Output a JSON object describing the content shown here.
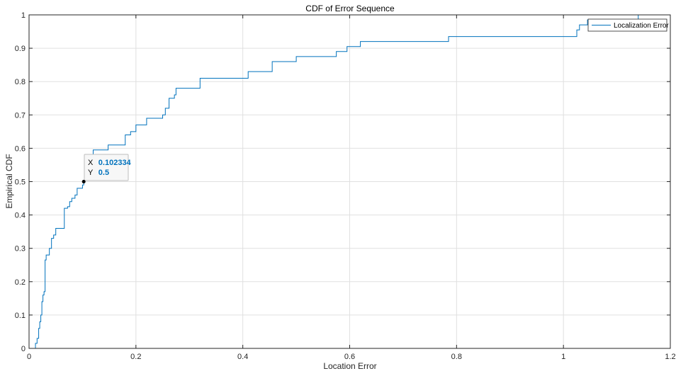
{
  "chart_data": {
    "type": "line",
    "title": "CDF of Error Sequence",
    "xlabel": "Location Error",
    "ylabel": "Empirical CDF",
    "xlim": [
      0,
      1.2
    ],
    "ylim": [
      0,
      1
    ],
    "xticks": [
      0,
      0.2,
      0.4,
      0.6,
      0.8,
      1,
      1.2
    ],
    "xtick_labels": [
      "0",
      "0.2",
      "0.4",
      "0.6",
      "0.8",
      "1",
      "1.2"
    ],
    "yticks": [
      0,
      0.1,
      0.2,
      0.3,
      0.4,
      0.5,
      0.6,
      0.7,
      0.8,
      0.9,
      1
    ],
    "ytick_labels": [
      "0",
      "0.1",
      "0.2",
      "0.3",
      "0.4",
      "0.5",
      "0.6",
      "0.7",
      "0.8",
      "0.9",
      "1"
    ],
    "grid": true,
    "legend_position": "top-right",
    "line_color": "#0072bd",
    "series": [
      {
        "name": "Localization Error",
        "step": true,
        "x": [
          0,
          0.012,
          0.015,
          0.018,
          0.02,
          0.022,
          0.024,
          0.026,
          0.028,
          0.03,
          0.032,
          0.038,
          0.042,
          0.046,
          0.05,
          0.066,
          0.072,
          0.076,
          0.08,
          0.086,
          0.09,
          0.1,
          0.102334,
          0.104,
          0.12,
          0.148,
          0.18,
          0.19,
          0.2,
          0.22,
          0.25,
          0.255,
          0.262,
          0.272,
          0.275,
          0.32,
          0.41,
          0.455,
          0.5,
          0.575,
          0.595,
          0.62,
          0.785,
          1.025,
          1.03,
          1.045,
          1.14
        ],
        "y": [
          0,
          0.015,
          0.03,
          0.06,
          0.08,
          0.1,
          0.14,
          0.16,
          0.17,
          0.265,
          0.28,
          0.3,
          0.33,
          0.34,
          0.36,
          0.42,
          0.425,
          0.44,
          0.45,
          0.46,
          0.48,
          0.49,
          0.5,
          0.58,
          0.595,
          0.61,
          0.64,
          0.65,
          0.67,
          0.69,
          0.7,
          0.72,
          0.75,
          0.76,
          0.78,
          0.81,
          0.83,
          0.86,
          0.875,
          0.89,
          0.905,
          0.92,
          0.935,
          0.955,
          0.97,
          0.985,
          1
        ]
      }
    ],
    "datatip": {
      "x_key": "X",
      "x_value": "0.102334",
      "y_key": "Y",
      "y_value": "0.5",
      "x": 0.102334,
      "y": 0.5,
      "value_color": "#0072bd"
    }
  }
}
